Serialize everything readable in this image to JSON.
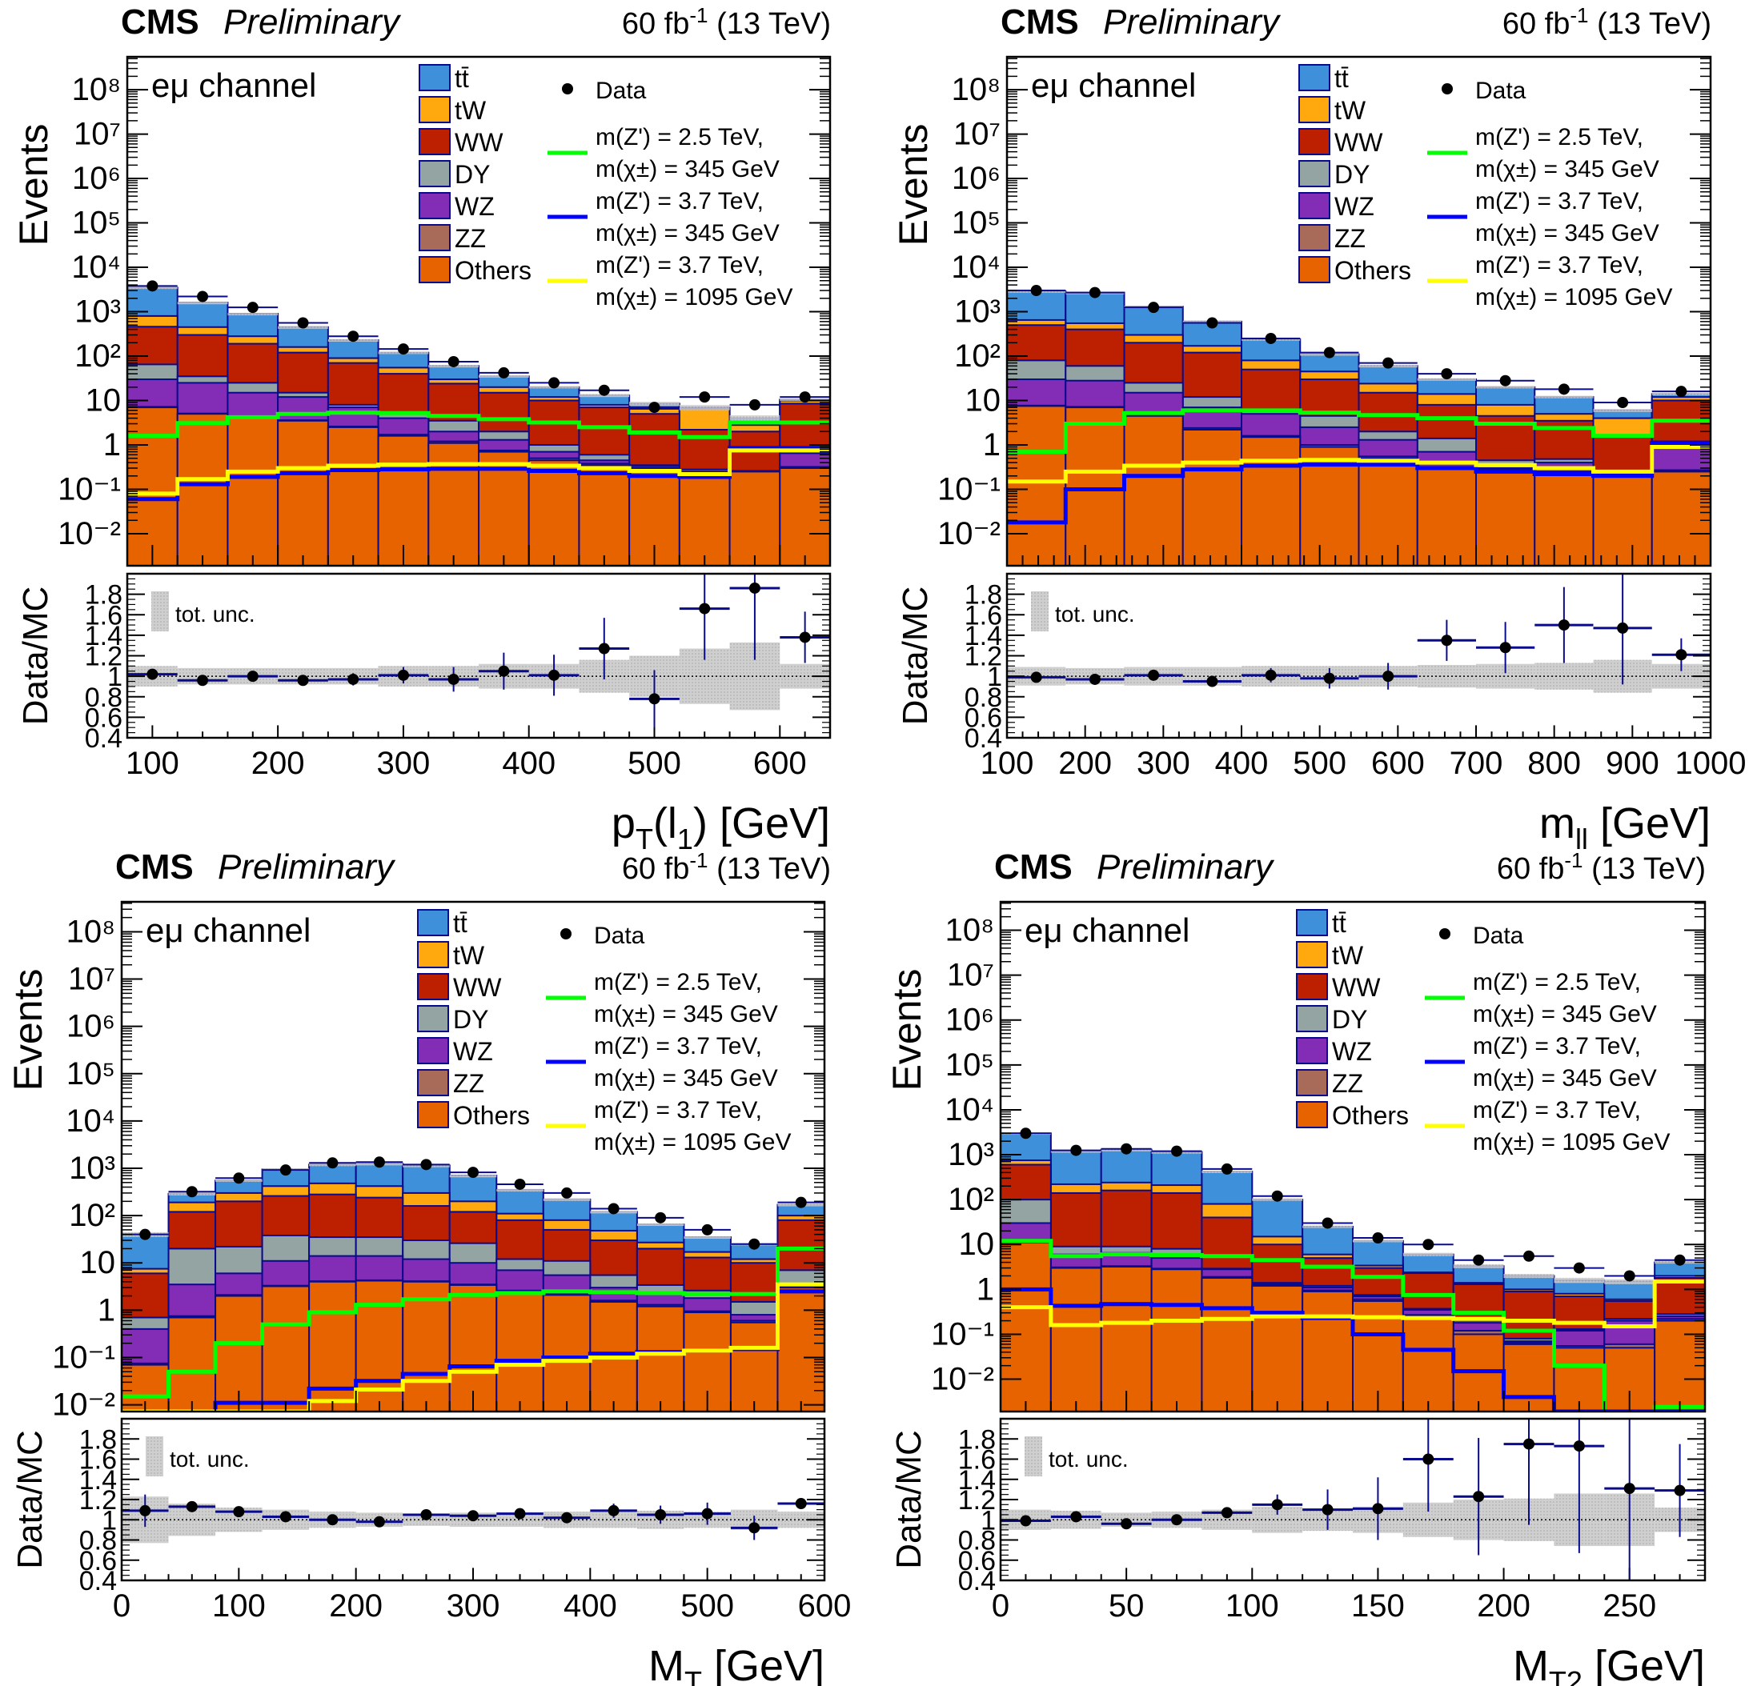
{
  "chart_data": [
    {
      "type": "bar",
      "stacked": true,
      "header": {
        "experiment": "CMS",
        "status": "Preliminary",
        "lumi": "60 fb",
        "lumi_exp": "-1",
        "energy": " (13 TeV)"
      },
      "channel_label": "eμ channel",
      "ylabel": "Events",
      "ratio_ylabel": "Data/MC",
      "xlabel": "p_T(l_1) [GeV]",
      "xlabel_parts": {
        "main": "p",
        "sub1": "T",
        "mid": "(l",
        "sub2": "1",
        "end": ") [GeV]"
      },
      "xlim": [
        80,
        640
      ],
      "ylim": [
        0.0019,
        550000000
      ],
      "yscale": "log",
      "ratio_ylim": [
        0.4,
        2.0
      ],
      "xticks": [
        100,
        200,
        300,
        400,
        500,
        600
      ],
      "bin_edges": [
        80,
        120,
        160,
        200,
        240,
        280,
        320,
        360,
        400,
        440,
        480,
        520,
        560,
        600,
        640
      ],
      "backgrounds_cumulative_top": {
        "Others": [
          7,
          5,
          4,
          3.5,
          2.5,
          1.6,
          1.1,
          0.7,
          0.45,
          0.35,
          0.3,
          0.25,
          0.25,
          0.3
        ],
        "ZZ": [
          7.2,
          5.1,
          4.1,
          3.6,
          2.6,
          1.7,
          1.2,
          0.75,
          0.5,
          0.38,
          0.33,
          0.28,
          0.26,
          0.32
        ],
        "WZ": [
          30,
          25,
          15,
          12,
          7,
          4,
          2,
          1.3,
          0.7,
          0.45,
          0.25,
          0.2,
          0.08,
          0.65
        ],
        "DY": [
          65,
          35,
          25,
          15,
          8,
          5,
          3.5,
          2,
          1,
          0.6,
          0.35,
          0.18,
          0.16,
          0.85
        ],
        "WW": [
          460,
          300,
          190,
          120,
          70,
          40,
          24,
          15,
          10,
          7,
          5,
          2.2,
          2.0,
          8.5
        ],
        "tW": [
          800,
          450,
          280,
          160,
          90,
          55,
          30,
          20,
          12,
          8,
          6.5,
          6.5,
          2.8,
          10
        ],
        "ttbar": [
          3500,
          1600,
          900,
          450,
          230,
          120,
          60,
          35,
          20,
          13,
          8.5,
          7.0,
          4.0,
          10.5
        ]
      },
      "data": [
        3800,
        2200,
        1250,
        560,
        280,
        145,
        75,
        42,
        25,
        17,
        7,
        12,
        8,
        12
      ],
      "signals": [
        {
          "name": "m(Z') = 2.5 TeV, m(χ±) = 345 GeV",
          "values": [
            1.6,
            3.1,
            4.2,
            5.0,
            5.3,
            5.2,
            4.5,
            3.8,
            3.2,
            2.5,
            1.9,
            1.5,
            3.2,
            3.2
          ]
        },
        {
          "name": "m(Z') = 3.7 TeV, m(χ±) = 345 GeV",
          "values": [
            0.06,
            0.13,
            0.19,
            0.23,
            0.27,
            0.28,
            0.29,
            0.29,
            0.26,
            0.23,
            0.2,
            0.19,
            0.85,
            0.85
          ]
        },
        {
          "name": "m(Z') = 3.7 TeV, m(χ±) = 1095 GeV",
          "values": [
            0.08,
            0.17,
            0.25,
            0.3,
            0.34,
            0.36,
            0.37,
            0.37,
            0.34,
            0.3,
            0.26,
            0.22,
            0.75,
            0.75
          ]
        }
      ],
      "ratio": [
        1.02,
        0.96,
        1.0,
        0.96,
        0.97,
        1.01,
        0.97,
        1.05,
        1.01,
        1.27,
        0.78,
        1.66,
        1.86,
        1.38
      ],
      "ratio_err": [
        0.02,
        0.03,
        0.03,
        0.04,
        0.06,
        0.08,
        0.12,
        0.18,
        0.2,
        0.3,
        0.28,
        0.5,
        0.7,
        0.25
      ],
      "unc_band": [
        0.1,
        0.08,
        0.08,
        0.08,
        0.08,
        0.1,
        0.1,
        0.12,
        0.12,
        0.16,
        0.2,
        0.27,
        0.33,
        0.12
      ]
    },
    {
      "type": "bar",
      "stacked": true,
      "header": {
        "experiment": "CMS",
        "status": "Preliminary",
        "lumi": "60 fb",
        "lumi_exp": "-1",
        "energy": " (13 TeV)"
      },
      "channel_label": "eμ channel",
      "ylabel": "Events",
      "ratio_ylabel": "Data/MC",
      "xlabel": "m_ll [GeV]",
      "xlabel_parts": {
        "main": "m",
        "sub1": "ll",
        "mid": "",
        "sub2": "",
        "end": " [GeV]"
      },
      "xlim": [
        100,
        1000
      ],
      "ylim": [
        0.0019,
        550000000
      ],
      "yscale": "log",
      "ratio_ylim": [
        0.4,
        2.0
      ],
      "xticks": [
        100,
        200,
        300,
        400,
        500,
        600,
        700,
        800,
        900,
        1000
      ],
      "bin_edges": [
        100,
        175,
        250,
        325,
        400,
        475,
        550,
        625,
        700,
        775,
        850,
        925,
        1000
      ],
      "backgrounds_cumulative_top": {
        "Others": [
          7.5,
          7,
          4.5,
          2.2,
          1.5,
          0.9,
          0.5,
          0.3,
          0.28,
          0.23,
          0.2,
          0.25
        ],
        "ZZ": [
          7.7,
          7.2,
          4.7,
          2.4,
          1.6,
          1.0,
          0.55,
          0.32,
          0.3,
          0.25,
          0.22,
          0.27
        ],
        "WZ": [
          30,
          28,
          15,
          7,
          5,
          2.5,
          1.3,
          0.7,
          0.2,
          0.4,
          0.2,
          0.9
        ],
        "DY": [
          80,
          60,
          25,
          12,
          6,
          4.5,
          2.0,
          1.4,
          0.45,
          0.48,
          0.22,
          1.2
        ],
        "WW": [
          500,
          400,
          200,
          120,
          50,
          30,
          15,
          8,
          4.5,
          3.5,
          1.6,
          10
        ],
        "tW": [
          650,
          550,
          300,
          170,
          80,
          45,
          24,
          14,
          8,
          5,
          4,
          12
        ],
        "ttbar": [
          2900,
          2700,
          1300,
          600,
          240,
          110,
          60,
          30,
          20,
          12,
          6,
          14
        ]
      },
      "data": [
        3000,
        2700,
        1250,
        560,
        250,
        120,
        70,
        40,
        28,
        18,
        9,
        16
      ],
      "signals": [
        {
          "name": "m(Z') = 2.5 TeV, m(χ±) = 345 GeV",
          "values": [
            0.7,
            3.0,
            5.2,
            6.0,
            6.0,
            5.3,
            4.7,
            4.0,
            3.0,
            2.4,
            1.6,
            3.5
          ]
        },
        {
          "name": "m(Z') = 3.7 TeV, m(χ±) = 345 GeV",
          "values": [
            0.018,
            0.1,
            0.2,
            0.28,
            0.34,
            0.36,
            0.36,
            0.3,
            0.25,
            0.22,
            0.2,
            1.1
          ]
        },
        {
          "name": "m(Z') = 3.7 TeV, m(χ±) = 1095 GeV",
          "values": [
            0.15,
            0.25,
            0.34,
            0.4,
            0.44,
            0.46,
            0.44,
            0.4,
            0.35,
            0.3,
            0.25,
            0.9
          ]
        }
      ],
      "ratio": [
        0.99,
        0.97,
        1.01,
        0.95,
        1.01,
        0.98,
        1.0,
        1.35,
        1.28,
        1.5,
        1.47,
        1.21
      ],
      "ratio_err": [
        0.02,
        0.02,
        0.03,
        0.03,
        0.07,
        0.1,
        0.13,
        0.2,
        0.25,
        0.37,
        0.55,
        0.16
      ],
      "unc_band": [
        0.09,
        0.08,
        0.09,
        0.09,
        0.1,
        0.1,
        0.1,
        0.11,
        0.12,
        0.13,
        0.16,
        0.12
      ]
    },
    {
      "type": "bar",
      "stacked": true,
      "header": {
        "experiment": "CMS",
        "status": "Preliminary",
        "lumi": "60 fb",
        "lumi_exp": "-1",
        "energy": " (13 TeV)"
      },
      "channel_label": "eμ channel",
      "ylabel": "Events",
      "ratio_ylabel": "Data/MC",
      "xlabel": "M_T [GeV]",
      "xlabel_parts": {
        "main": "M",
        "sub1": "T",
        "mid": "",
        "sub2": "",
        "end": " [GeV]"
      },
      "xlim": [
        0,
        600
      ],
      "ylim": [
        0.0072,
        430000000
      ],
      "yscale": "log",
      "ratio_ylim": [
        0.4,
        2.0
      ],
      "xticks": [
        0,
        100,
        200,
        300,
        400,
        500,
        600
      ],
      "bin_edges": [
        0,
        40,
        80,
        120,
        160,
        200,
        240,
        280,
        320,
        360,
        400,
        440,
        480,
        520,
        560,
        600
      ],
      "backgrounds_cumulative_top": {
        "Others": [
          0.07,
          0.7,
          2.0,
          3.2,
          4.0,
          4.2,
          4.0,
          3.4,
          2.5,
          2.1,
          1.5,
          1.2,
          0.9,
          0.55,
          3.0
        ],
        "ZZ": [
          0.075,
          0.75,
          2.1,
          3.3,
          4.1,
          4.3,
          4.1,
          3.5,
          2.6,
          2.2,
          1.6,
          1.3,
          0.95,
          0.6,
          3.1
        ],
        "WZ": [
          0.4,
          3.5,
          6,
          11,
          14,
          14,
          12,
          10,
          7,
          5.5,
          3.0,
          2.2,
          1.8,
          0.8,
          3.6
        ],
        "DY": [
          0.7,
          20,
          22,
          38,
          35,
          35,
          30,
          26,
          12,
          11,
          5.5,
          3.4,
          2.6,
          1.5,
          7
        ],
        "WW": [
          6,
          120,
          200,
          260,
          280,
          240,
          160,
          120,
          80,
          50,
          30,
          20,
          13,
          10,
          80
        ],
        "tW": [
          7.5,
          190,
          300,
          420,
          480,
          420,
          300,
          200,
          110,
          80,
          48,
          27,
          17,
          12,
          100
        ],
        "ttbar": [
          40,
          290,
          550,
          950,
          1200,
          1250,
          1150,
          700,
          350,
          220,
          120,
          65,
          35,
          25,
          170
        ]
      },
      "data": [
        40,
        320,
        620,
        920,
        1300,
        1350,
        1200,
        820,
        460,
        300,
        140,
        90,
        50,
        25,
        190
      ],
      "signals": [
        {
          "name": "m(Z') = 2.5 TeV, m(χ±) = 345 GeV",
          "values": [
            0.015,
            0.05,
            0.2,
            0.5,
            0.9,
            1.3,
            1.7,
            2.1,
            2.3,
            2.5,
            2.4,
            2.3,
            2.2,
            2.2,
            20
          ]
        },
        {
          "name": "m(Z') = 3.7 TeV, m(χ±) = 345 GeV",
          "values": [
            0.0072,
            0.0072,
            0.011,
            0.011,
            0.022,
            0.032,
            0.045,
            0.065,
            0.085,
            0.1,
            0.12,
            0.13,
            0.14,
            0.15,
            2.5
          ]
        },
        {
          "name": "m(Z') = 3.7 TeV, m(χ±) = 1095 GeV",
          "values": [
            0.0072,
            0.0072,
            0.0072,
            0.0072,
            0.012,
            0.021,
            0.032,
            0.05,
            0.07,
            0.085,
            0.1,
            0.12,
            0.14,
            0.16,
            3.5
          ]
        }
      ],
      "ratio": [
        1.09,
        1.13,
        1.08,
        1.03,
        1.0,
        0.98,
        1.05,
        1.04,
        1.06,
        1.02,
        1.09,
        1.05,
        1.06,
        0.92,
        1.16
      ],
      "ratio_err": [
        0.16,
        0.05,
        0.04,
        0.03,
        0.02,
        0.02,
        0.02,
        0.03,
        0.04,
        0.05,
        0.07,
        0.09,
        0.11,
        0.12,
        0.02
      ],
      "unc_band": [
        0.23,
        0.16,
        0.12,
        0.1,
        0.08,
        0.07,
        0.06,
        0.07,
        0.07,
        0.08,
        0.08,
        0.09,
        0.08,
        0.1,
        0.08
      ]
    },
    {
      "type": "bar",
      "stacked": true,
      "header": {
        "experiment": "CMS",
        "status": "Preliminary",
        "lumi": "60 fb",
        "lumi_exp": "-1",
        "energy": " (13 TeV)"
      },
      "channel_label": "eμ channel",
      "ylabel": "Events",
      "ratio_ylabel": "Data/MC",
      "xlabel": "M_T2 [GeV]",
      "xlabel_parts": {
        "main": "M",
        "sub1": "T2",
        "mid": "",
        "sub2": "",
        "end": " [GeV]"
      },
      "xlim": [
        0,
        280
      ],
      "ylim": [
        0.0019,
        430000000
      ],
      "yscale": "log",
      "ratio_ylim": [
        0.4,
        2.0
      ],
      "xticks": [
        0,
        50,
        100,
        150,
        200,
        250
      ],
      "bin_edges": [
        0,
        20,
        40,
        60,
        80,
        100,
        120,
        140,
        160,
        180,
        200,
        220,
        240,
        260,
        280
      ],
      "backgrounds_cumulative_top": {
        "Others": [
          11,
          3.0,
          3.2,
          2.8,
          1.8,
          1.2,
          0.9,
          0.55,
          0.25,
          0.1,
          0.06,
          0.05,
          0.05,
          0.2
        ],
        "ZZ": [
          11.5,
          3.1,
          3.3,
          2.9,
          1.9,
          1.25,
          0.95,
          0.6,
          0.27,
          0.12,
          0.065,
          0.055,
          0.06,
          0.22
        ],
        "WZ": [
          30,
          6,
          6.5,
          5,
          2.8,
          1.3,
          1.1,
          0.7,
          0.35,
          0.18,
          0.07,
          0.12,
          0.2,
          0.25
        ],
        "DY": [
          100,
          9,
          9,
          8,
          2.9,
          1.4,
          1.2,
          0.75,
          0.37,
          0.2,
          0.08,
          0.13,
          0.22,
          0.28
        ],
        "WW": [
          600,
          140,
          160,
          140,
          40,
          10,
          5,
          3,
          2.3,
          1.3,
          0.9,
          0.7,
          0.55,
          1.8
        ],
        "tW": [
          750,
          220,
          240,
          210,
          80,
          15,
          6,
          3.4,
          2.4,
          1.4,
          1.0,
          0.8,
          0.6,
          2.0
        ],
        "ttbar": [
          3000,
          1200,
          1300,
          1150,
          420,
          100,
          25,
          12,
          6,
          3.3,
          2.0,
          1.6,
          1.5,
          4.0
        ]
      },
      "data": [
        3000,
        1250,
        1350,
        1200,
        480,
        120,
        30,
        14,
        10,
        4.5,
        5.5,
        3,
        2,
        4.5
      ],
      "signals": [
        {
          "name": "m(Z') = 2.5 TeV, m(χ±) = 345 GeV",
          "values": [
            12,
            5.5,
            6.0,
            5.8,
            5.5,
            4.5,
            3.2,
            1.9,
            0.75,
            0.3,
            0.12,
            0.02,
            0.0019,
            0.0024
          ]
        },
        {
          "name": "m(Z') = 3.7 TeV, m(χ±) = 345 GeV",
          "values": [
            1.0,
            0.43,
            0.47,
            0.45,
            0.38,
            0.3,
            0.23,
            0.1,
            0.045,
            0.015,
            0.004,
            0.0019,
            0.0019,
            0.0019
          ]
        },
        {
          "name": "m(Z') = 3.7 TeV, m(χ±) = 1095 GeV",
          "values": [
            0.4,
            0.16,
            0.18,
            0.2,
            0.22,
            0.25,
            0.25,
            0.24,
            0.23,
            0.22,
            0.2,
            0.18,
            0.15,
            1.5
          ]
        }
      ],
      "ratio": [
        0.99,
        1.03,
        0.96,
        1.0,
        1.07,
        1.15,
        1.1,
        1.11,
        1.6,
        1.23,
        1.75,
        1.73,
        1.31,
        1.29
      ],
      "ratio_err": [
        0.03,
        0.02,
        0.02,
        0.03,
        0.05,
        0.1,
        0.2,
        0.31,
        0.52,
        0.58,
        0.8,
        1.06,
        1.0,
        0.46
      ],
      "unc_band": [
        0.1,
        0.09,
        0.07,
        0.08,
        0.1,
        0.13,
        0.11,
        0.13,
        0.17,
        0.2,
        0.21,
        0.26,
        0.26,
        0.12
      ]
    }
  ],
  "legend": {
    "backgrounds": [
      {
        "key": "ttbar",
        "label": "tt̄",
        "color": "#3f90da"
      },
      {
        "key": "tW",
        "label": "tW",
        "color": "#ffa90e"
      },
      {
        "key": "WW",
        "label": "WW",
        "color": "#bd1f01"
      },
      {
        "key": "DY",
        "label": "DY",
        "color": "#94a4a2"
      },
      {
        "key": "WZ",
        "label": "WZ",
        "color": "#832db6"
      },
      {
        "key": "ZZ",
        "label": "ZZ",
        "color": "#a96b59"
      },
      {
        "key": "Others",
        "label": "Others",
        "color": "#e76300"
      }
    ],
    "data_label": "Data",
    "signals": [
      {
        "line1": "m(Z') = 2.5 TeV,",
        "line2": "m(χ±) = 345 GeV",
        "color": "#00ff00"
      },
      {
        "line1": "m(Z') = 3.7 TeV,",
        "line2": "m(χ±) = 345 GeV",
        "color": "#0000ff"
      },
      {
        "line1": "m(Z') = 3.7 TeV,",
        "line2": "m(χ±) = 1095 GeV",
        "color": "#ffff00"
      }
    ],
    "unc_label": "tot. unc."
  },
  "yticks_main": [
    "10⁻²",
    "10⁻¹",
    "1",
    "10",
    "10²",
    "10³",
    "10⁴",
    "10⁵",
    "10⁶",
    "10⁷",
    "10⁸"
  ],
  "yticks_ratio": [
    "0.4",
    "0.6",
    "0.8",
    "1",
    "1.2",
    "1.4",
    "1.6",
    "1.8"
  ]
}
